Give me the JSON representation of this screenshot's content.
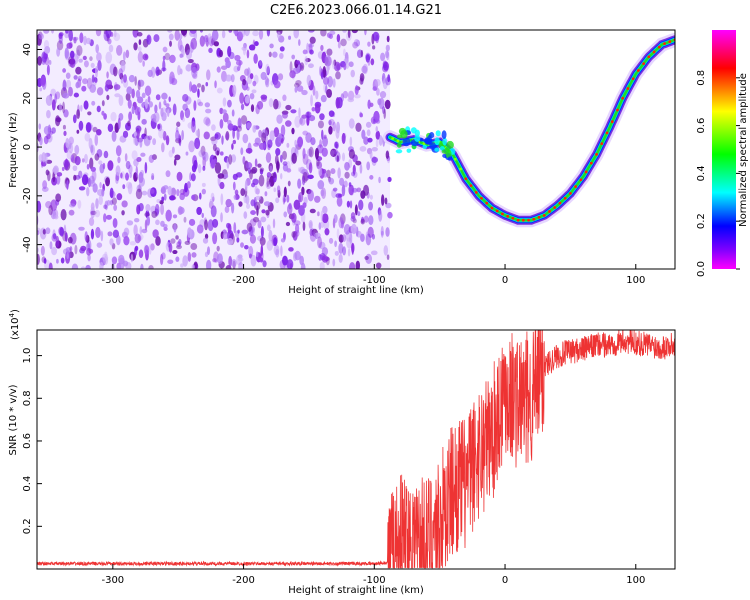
{
  "title": "C2E6.2023.066.01.14.G21",
  "chart_data": [
    {
      "type": "heatmap",
      "xlabel": "Height of straight line (km)",
      "ylabel": "Frequency (Hz)",
      "xlim": [
        -358,
        130
      ],
      "ylim": [
        -50,
        48
      ],
      "x_ticks": [
        -300,
        -200,
        -100,
        0,
        100
      ],
      "y_ticks": [
        -40,
        -20,
        0,
        20,
        40
      ],
      "colorbar": {
        "label": "Normalized spectral amplitude",
        "range": [
          0,
          1
        ],
        "ticks": [
          "0.0",
          "0.2",
          "0.4",
          "0.6",
          "0.8"
        ],
        "colormap": [
          "#ff00ff",
          "#0000ff",
          "#00ffff",
          "#00ff00",
          "#ffff00",
          "#ff0000",
          "#ff00ff"
        ]
      },
      "noise_region": {
        "x": [
          -358,
          -88
        ],
        "amplitude": 0.12,
        "color": "#8a2be2"
      },
      "trace": {
        "name": "",
        "x": [
          -88,
          -80,
          -70,
          -60,
          -50,
          -40,
          -30,
          -20,
          -10,
          0,
          10,
          20,
          30,
          40,
          50,
          60,
          70,
          80,
          90,
          100,
          110,
          120,
          130
        ],
        "y": [
          4,
          2,
          3,
          1,
          2,
          -3,
          -13,
          -20,
          -25,
          -28,
          -30,
          -30,
          -28,
          -24,
          -19,
          -12,
          -3,
          8,
          20,
          30,
          37,
          42,
          44
        ]
      },
      "grid": false
    },
    {
      "type": "line",
      "xlabel": "Height of straight line (km)",
      "ylabel": "SNR (10 * v/v)",
      "y_multiplier": "(x10",
      "y_exponent": "4",
      "y_multiplier_close": ")",
      "xlim": [
        -358,
        130
      ],
      "ylim": [
        0,
        1.12
      ],
      "x_ticks": [
        -300,
        -200,
        -100,
        0,
        100
      ],
      "y_ticks": [
        0.2,
        0.4,
        0.6,
        0.8,
        1.0
      ],
      "y_tick_labels": [
        "0.2",
        "0.4",
        "0.6",
        "0.8",
        "1.0"
      ],
      "series": [
        {
          "color": "#ee3333",
          "x": [
            -358,
            -300,
            -250,
            -200,
            -150,
            -100,
            -90,
            -85,
            -80,
            -70,
            -60,
            -50,
            -40,
            -30,
            -20,
            -10,
            0,
            10,
            20,
            30,
            40,
            50,
            60,
            70,
            80,
            90,
            100,
            110,
            120,
            130
          ],
          "y": [
            0.025,
            0.025,
            0.025,
            0.025,
            0.025,
            0.025,
            0.03,
            0.07,
            0.14,
            0.15,
            0.12,
            0.22,
            0.38,
            0.4,
            0.55,
            0.62,
            0.85,
            0.78,
            0.8,
            0.95,
            1.0,
            1.02,
            1.03,
            1.05,
            1.05,
            1.07,
            1.06,
            1.05,
            1.04,
            1.05
          ]
        }
      ],
      "grid": false
    }
  ]
}
